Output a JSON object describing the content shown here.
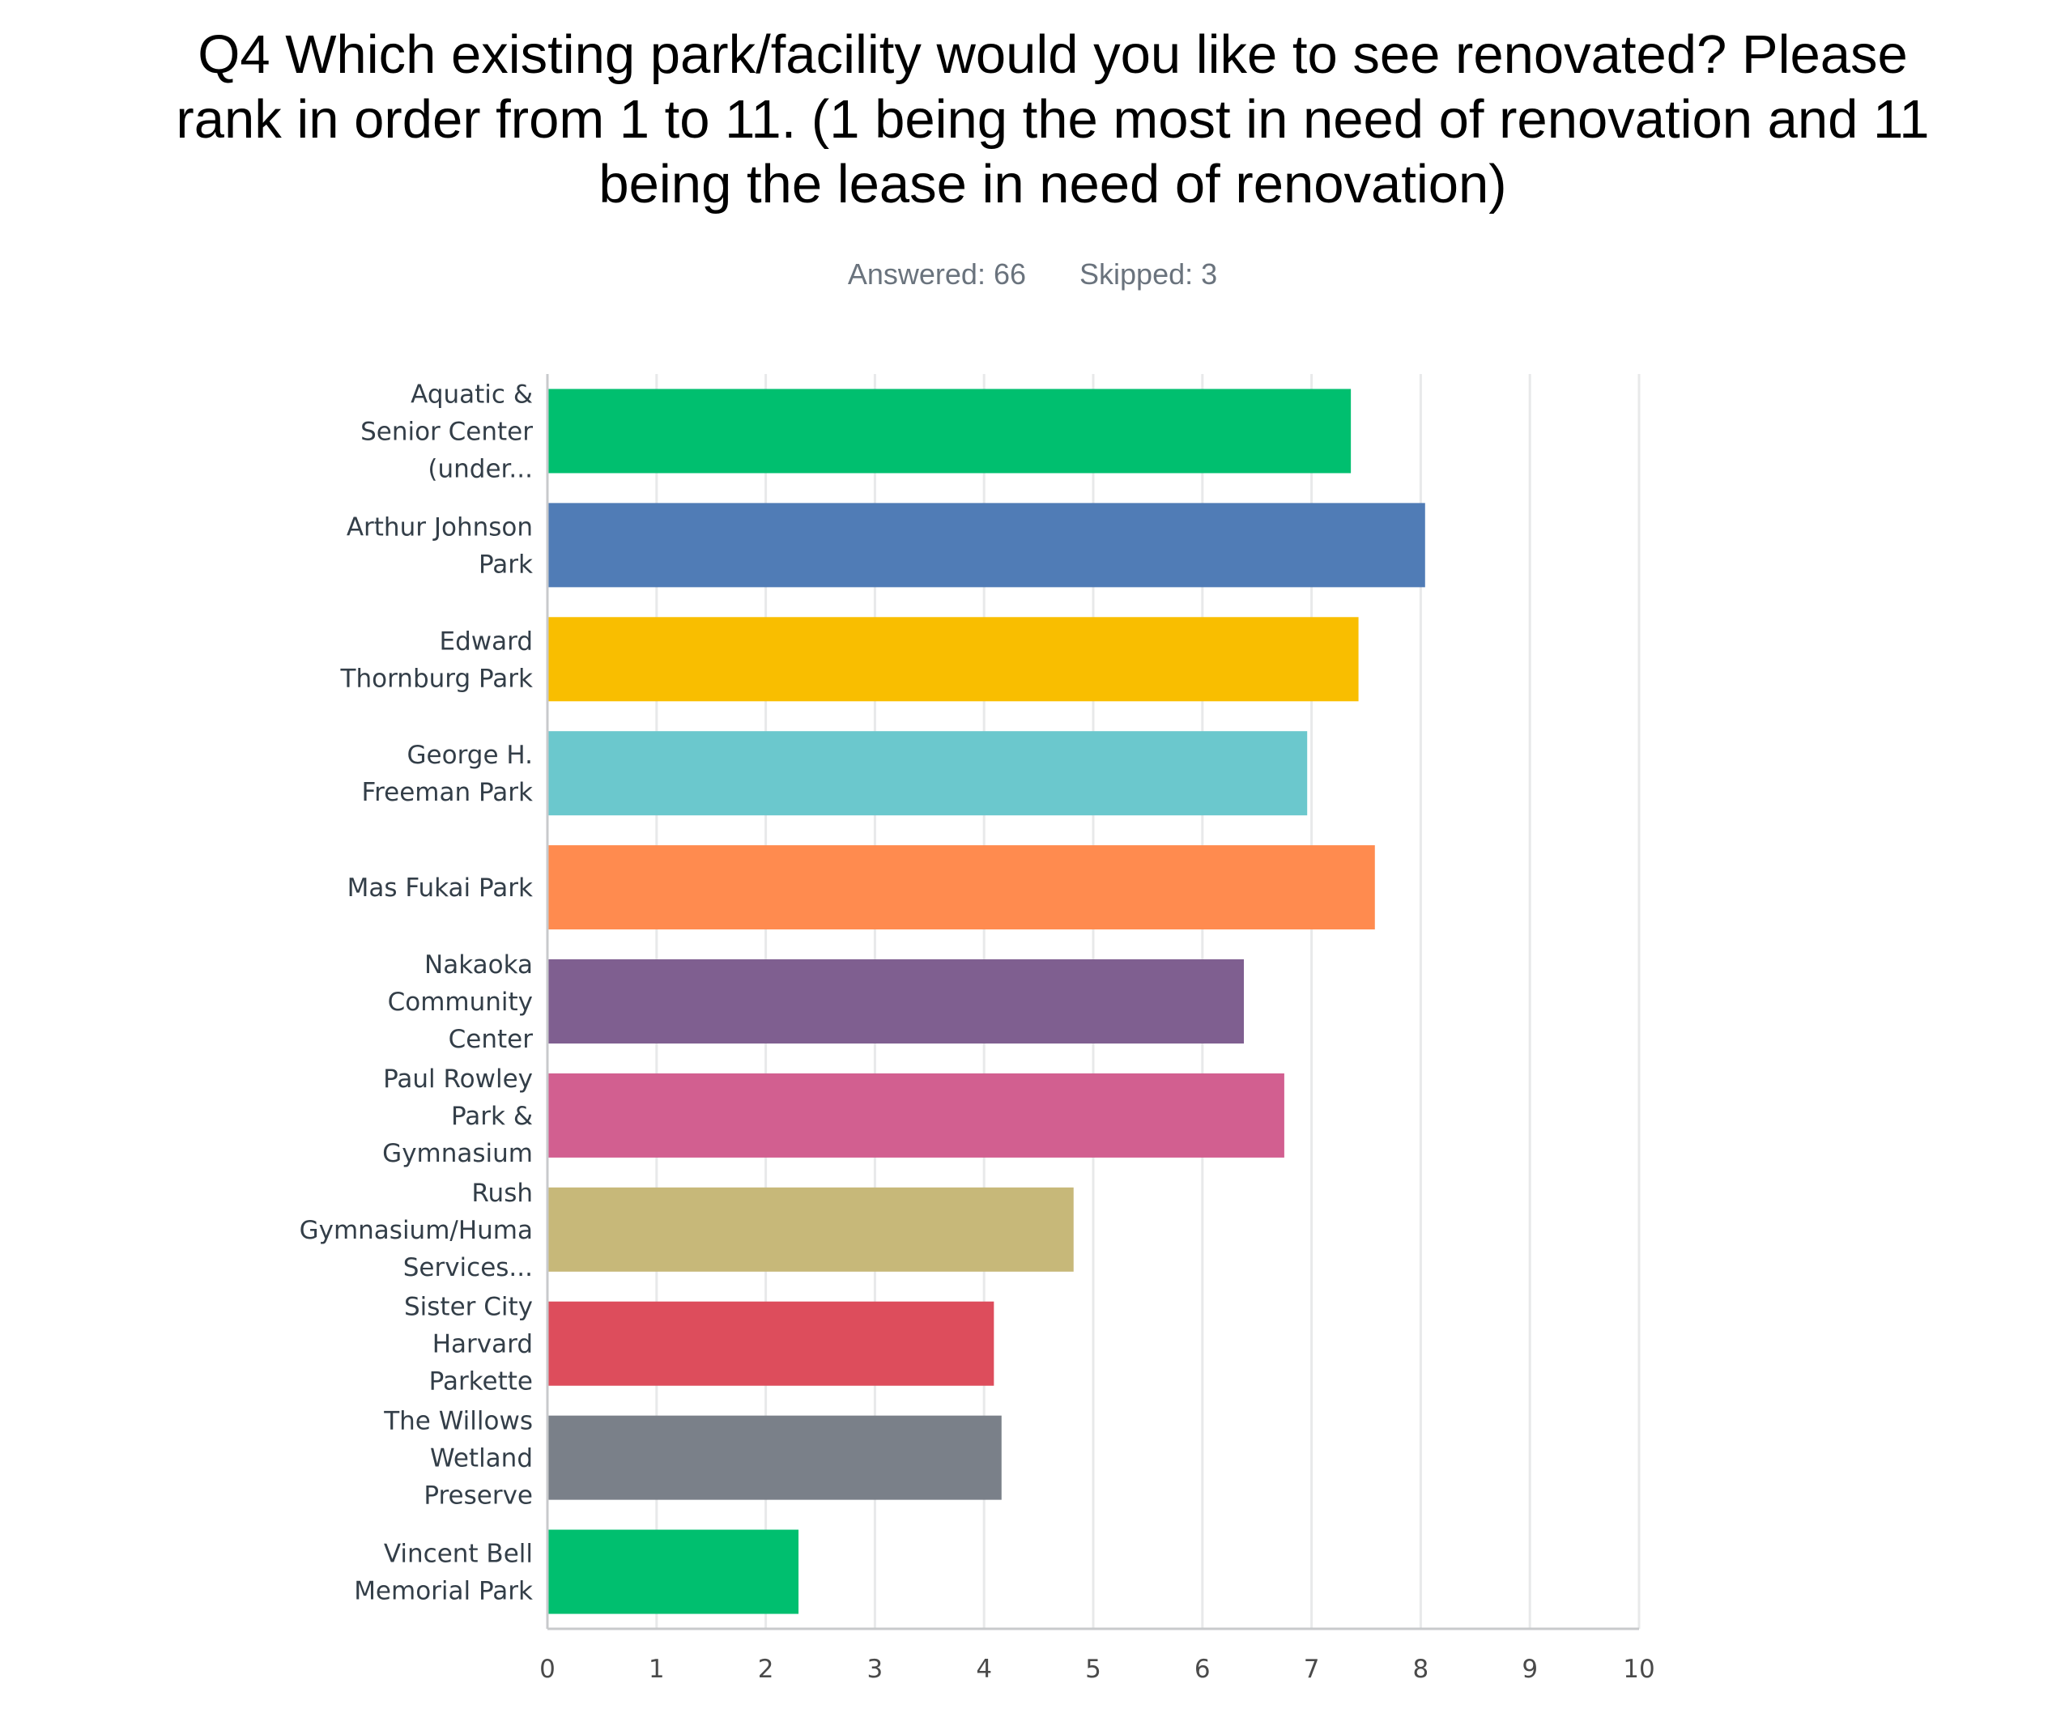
{
  "header": {
    "title_lines": [
      "Q4 Which existing park/facility would you like to see renovated? Please",
      "rank in order from 1 to 11. (1 being the most in need of renovation and 11",
      "being the lease in need of renovation)"
    ],
    "answered": "Answered: 66",
    "skipped": "Skipped: 3"
  },
  "chart_data": {
    "type": "bar",
    "orientation": "horizontal",
    "categories": [
      [
        "Aquatic &",
        "Senior Center",
        "(under..."
      ],
      [
        "Arthur Johnson",
        "Park"
      ],
      [
        "Edward",
        "Thornburg Park"
      ],
      [
        "George H.",
        "Freeman Park"
      ],
      [
        "Mas Fukai Park"
      ],
      [
        "Nakaoka",
        "Community",
        "Center"
      ],
      [
        "Paul Rowley",
        "Park &",
        "Gymnasium"
      ],
      [
        "Rush",
        "Gymnasium/Huma",
        "Services..."
      ],
      [
        "Sister City",
        "Harvard",
        "Parkette"
      ],
      [
        "The Willows",
        "Wetland",
        "Preserve"
      ],
      [
        "Vincent Bell",
        "Memorial Park"
      ]
    ],
    "values": [
      7.36,
      8.04,
      7.43,
      6.96,
      7.58,
      6.38,
      6.75,
      4.82,
      4.09,
      4.16,
      2.3
    ],
    "colors": [
      "#00bf6f",
      "#507cb6",
      "#f9be00",
      "#6bc8cd",
      "#ff8b4f",
      "#7f5f90",
      "#d25f90",
      "#c7b879",
      "#dd4d5c",
      "#7a8089",
      "#00bf6f"
    ],
    "xlim": [
      0,
      10
    ],
    "xticks": [
      "0",
      "1",
      "2",
      "3",
      "4",
      "5",
      "6",
      "7",
      "8",
      "9",
      "10"
    ],
    "grid": true,
    "legend": "none",
    "gridline_color": "#e8e9ea",
    "axis_color": "#c8cacc"
  }
}
